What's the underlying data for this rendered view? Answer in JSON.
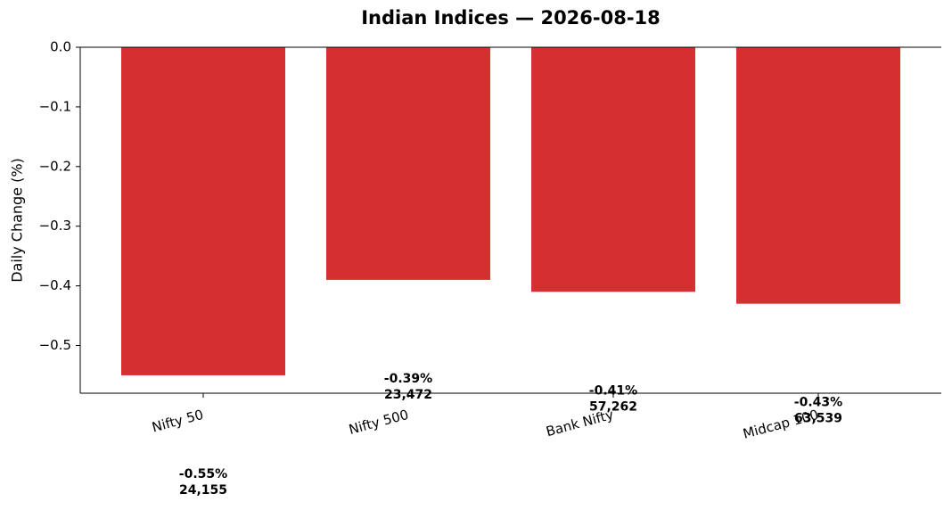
{
  "chart_data": {
    "type": "bar",
    "title": "Indian Indices — 2026-08-18",
    "y_label": "Daily Change (%)",
    "categories": [
      "Nifty 50",
      "Nifty 500",
      "Bank Nifty",
      "Midcap 100"
    ],
    "values": [
      -0.55,
      -0.39,
      -0.41,
      -0.43
    ],
    "value_labels": [
      "-0.55%",
      "-0.39%",
      "-0.41%",
      "-0.43%"
    ],
    "levels": [
      "24,155",
      "23,472",
      "57,262",
      "63,539"
    ],
    "color": "#d62f2f",
    "ylim": [
      -0.58,
      0
    ],
    "yticks": [
      {
        "value": 0,
        "label": "0.0"
      },
      {
        "value": -0.1,
        "label": "−0.1"
      },
      {
        "value": -0.2,
        "label": "−0.2"
      },
      {
        "value": -0.3,
        "label": "−0.3"
      },
      {
        "value": -0.4,
        "label": "−0.4"
      },
      {
        "value": -0.5,
        "label": "−0.5"
      }
    ],
    "grid": false
  }
}
